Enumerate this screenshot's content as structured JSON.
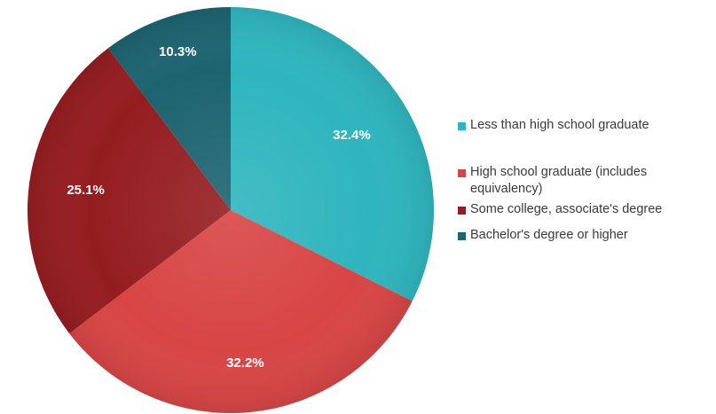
{
  "chart_data": {
    "type": "pie",
    "categories": [
      "Less than high school graduate",
      "High school graduate (includes equivalency)",
      "Some college, associate's degree",
      "Bachelor's degree or higher"
    ],
    "values": [
      32.4,
      32.2,
      25.1,
      10.3
    ],
    "data_labels": [
      "32.4%",
      "32.2%",
      "25.1%",
      "10.3%"
    ],
    "colors": [
      "#2fb5be",
      "#d84545",
      "#951d20",
      "#1d6470"
    ],
    "start_angle_deg": 0,
    "direction": "clockwise",
    "legend_position": "right"
  },
  "legend": {
    "items": [
      {
        "label": "Less than high school graduate",
        "color": "#2fb5be"
      },
      {
        "label": "High school graduate (includes equivalency)",
        "color": "#d84545"
      },
      {
        "label": "Some college, associate's degree",
        "color": "#951d20"
      },
      {
        "label": "Bachelor's degree or higher",
        "color": "#1d6470"
      }
    ]
  }
}
